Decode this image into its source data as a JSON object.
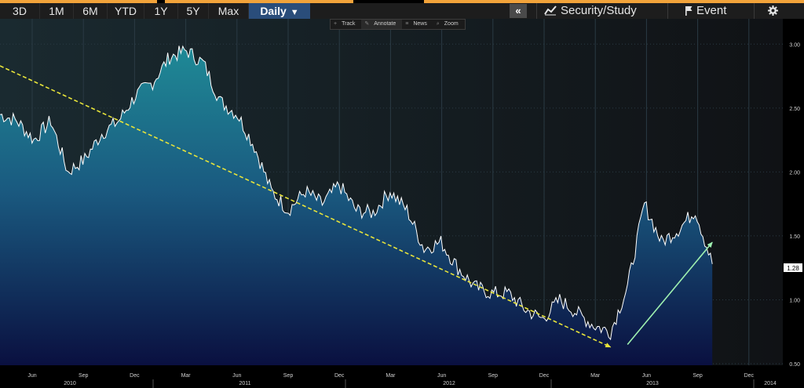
{
  "toolbar": {
    "ranges": [
      "3D",
      "1M",
      "6M",
      "YTD",
      "1Y",
      "5Y",
      "Max"
    ],
    "daily_label": "Daily",
    "collapse_label": "«",
    "security_study_label": "Security/Study",
    "event_label": "Event",
    "settings_icon": "gear-icon"
  },
  "subtools": {
    "track": "Track",
    "annotate": "Annotate",
    "news": "News",
    "zoom": "Zoom"
  },
  "colors": {
    "accent_orange": "#f2a33a",
    "toolbar_bg": "#1d1d1d",
    "daily_active": "#2a4d7a",
    "price_line": "#ffffff",
    "fill_top": "#1f8a96",
    "fill_bottom": "#0a1040",
    "downtrend": "#e8e43a",
    "uptrend": "#9ef0b0"
  },
  "chart_data": {
    "type": "area",
    "title": "",
    "xlabel": "",
    "ylabel": "",
    "ylim": [
      0.5,
      3.1
    ],
    "yticks": [
      "3.00",
      "2.50",
      "2.00",
      "1.50",
      "1.00",
      "0.50"
    ],
    "last_value": "1.28",
    "x_months": [
      "Jun",
      "Sep",
      "Dec",
      "Mar",
      "Jun",
      "Sep",
      "Dec",
      "Mar",
      "Jun",
      "Sep",
      "Dec",
      "Mar",
      "Jun",
      "Sep",
      "Dec"
    ],
    "x_years": [
      "2010",
      "2011",
      "2012",
      "2013",
      "2014"
    ],
    "grid": true,
    "series": [
      {
        "values": [
          [
            "2010-04",
            2.45
          ],
          [
            "2010-05",
            2.4
          ],
          [
            "2010-06",
            2.25
          ],
          [
            "2010-07",
            2.4
          ],
          [
            "2010-08",
            2.0
          ],
          [
            "2010-09",
            2.1
          ],
          [
            "2010-10",
            2.3
          ],
          [
            "2010-11",
            2.4
          ],
          [
            "2010-12",
            2.6
          ],
          [
            "2011-01",
            2.7
          ],
          [
            "2011-02",
            2.9
          ],
          [
            "2011-03",
            2.95
          ],
          [
            "2011-04",
            2.85
          ],
          [
            "2011-05",
            2.55
          ],
          [
            "2011-06",
            2.45
          ],
          [
            "2011-07",
            2.2
          ],
          [
            "2011-08",
            1.85
          ],
          [
            "2011-09",
            1.7
          ],
          [
            "2011-10",
            1.85
          ],
          [
            "2011-11",
            1.75
          ],
          [
            "2011-12",
            1.9
          ],
          [
            "2012-01",
            1.7
          ],
          [
            "2012-02",
            1.68
          ],
          [
            "2012-03",
            1.85
          ],
          [
            "2012-04",
            1.7
          ],
          [
            "2012-05",
            1.4
          ],
          [
            "2012-06",
            1.45
          ],
          [
            "2012-07",
            1.25
          ],
          [
            "2012-08",
            1.1
          ],
          [
            "2012-09",
            1.05
          ],
          [
            "2012-10",
            1.05
          ],
          [
            "2012-11",
            0.92
          ],
          [
            "2012-12",
            0.85
          ],
          [
            "2013-01",
            1.0
          ],
          [
            "2013-02",
            0.9
          ],
          [
            "2013-03",
            0.8
          ],
          [
            "2013-04",
            0.75
          ],
          [
            "2013-05",
            1.1
          ],
          [
            "2013-06",
            1.75
          ],
          [
            "2013-07",
            1.45
          ],
          [
            "2013-08",
            1.55
          ],
          [
            "2013-09",
            1.7
          ],
          [
            "2013-10",
            1.28
          ]
        ]
      }
    ],
    "trendlines": [
      {
        "style": "dashed",
        "from": [
          "2010-04",
          2.83
        ],
        "to": [
          "2013-04",
          0.63
        ]
      },
      {
        "style": "solid",
        "from": [
          "2013-05",
          0.65
        ],
        "to": [
          "2013-10",
          1.45
        ]
      }
    ]
  }
}
